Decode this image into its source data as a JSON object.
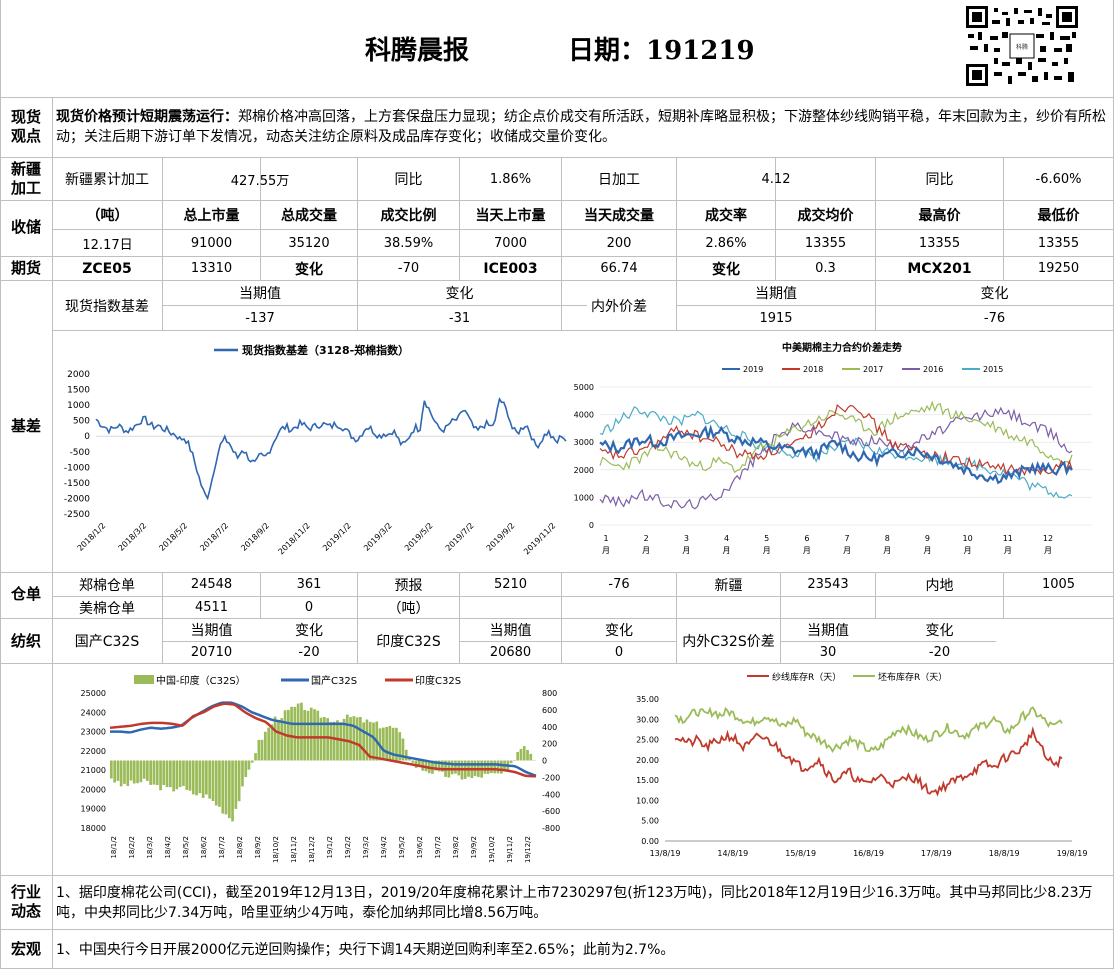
{
  "header": {
    "title": "科腾晨报",
    "date_label": "日期：191219"
  },
  "rows": {
    "spot_view": "现货观点",
    "xinjiang": "新疆加工",
    "storage": "收储",
    "futures": "期货",
    "basis": "基差",
    "warehouse": "仓单",
    "spinning": "纺织",
    "industry": "行业动态",
    "macro": "宏观"
  },
  "spot_view": {
    "bold": "现货价格预计短期震荡运行：",
    "text": "郑棉价格冲高回落，上方套保盘压力显现；纺企点价成交有所活跃，短期补库略显积极；下游整体纱线购销平稳，年末回款为主，纱价有所松动；关注后期下游订单下发情况，动态关注纺企原料及成品库存变化；收储成交量价变化。"
  },
  "xinjiang": {
    "cum_label": "新疆累计加工",
    "cum_value": "427.55万",
    "yoy_label": "同比",
    "yoy_value": "1.86%",
    "daily_label": "日加工",
    "daily_value": "4.12",
    "daily_yoy_label": "同比",
    "daily_yoy_value": "-6.60%"
  },
  "storage": {
    "headers": [
      "（吨）",
      "总上市量",
      "总成交量",
      "成交比例",
      "当天上市量",
      "当天成交量",
      "成交率",
      "成交均价",
      "最高价",
      "最低价"
    ],
    "values": [
      "12.17日",
      "91000",
      "35120",
      "38.59%",
      "7000",
      "200",
      "2.86%",
      "13355",
      "13355",
      "13355"
    ]
  },
  "futures": {
    "zce_label": "ZCE05",
    "zce_value": "13310",
    "change_label": "变化",
    "zce_change": "-70",
    "ice_label": "ICE003",
    "ice_value": "66.74",
    "change_label2": "变化",
    "ice_change": "0.3",
    "mcx_label": "MCX201",
    "mcx_value": "19250"
  },
  "basis_table": {
    "spot_index_label": "现货指数基差",
    "cur_label": "当期值",
    "chg_label": "变化",
    "spot_cur": "-137",
    "spot_chg": "-31",
    "inout_label": "内外价差",
    "cur_label2": "当期值",
    "chg_label2": "变化",
    "inout_cur": "1915",
    "inout_chg": "-76"
  },
  "warehouse": {
    "zce_label": "郑棉仓单",
    "zce_value": "24548",
    "zce_change": "361",
    "forecast_label": "预报",
    "forecast_value": "5210",
    "forecast_change": "-76",
    "xj_label": "新疆",
    "xj_value": "23543",
    "inland_label": "内地",
    "inland_value": "1005",
    "us_label": "美棉仓单",
    "us_value": "4511",
    "us_change": "0",
    "unit_label": "（吨）"
  },
  "spinning": {
    "cn_label": "国产C32S",
    "cur_label": "当期值",
    "chg_label": "变化",
    "cn_cur": "20710",
    "cn_chg": "-20",
    "in_label": "印度C32S",
    "cur_label2": "当期值",
    "chg_label2": "变化",
    "in_cur": "20680",
    "in_chg": "0",
    "diff_label": "内外C32S价差",
    "cur_label3": "当期值",
    "chg_label3": "变化",
    "diff_cur": "30",
    "diff_chg": "-20"
  },
  "industry_text": "1、据印度棉花公司(CCI)，截至2019年12月13日，2019/20年度棉花累计上市7230297包(折123万吨)，同比2018年12月19日少16.3万吨。其中马邦同比少8.23万吨，中央邦同比少7.34万吨，哈里亚纳少4万吨，泰伦加纳邦同比增8.56万吨。",
  "macro_text": "1、中国央行今日开展2000亿元逆回购操作；央行下调14天期逆回购利率至2.65%；此前为2.7%。",
  "colors": {
    "blue": "#2f67b1",
    "red": "#c0392b",
    "green": "#9bbb59",
    "purple": "#7b5ea7",
    "cyan": "#4bacc6",
    "orange": "#f79646"
  },
  "chart_data": [
    {
      "type": "line",
      "title": "",
      "series": [
        {
          "name": "现货指数基差（3128-郑棉指数）"
        }
      ],
      "x_ticks": [
        "2018/1/2",
        "2018/3/2",
        "2018/5/2",
        "2018/7/2",
        "2018/9/2",
        "2018/11/2",
        "2019/1/2",
        "2019/3/2",
        "2019/5/2",
        "2019/7/2",
        "2019/9/2",
        "2019/11/2"
      ],
      "y_ticks": [
        2000,
        1500,
        1000,
        500,
        0,
        -500,
        -1000,
        -1500,
        -2000,
        -2500
      ],
      "ylim": [
        -2500,
        2000
      ],
      "values": [
        550,
        400,
        300,
        200,
        250,
        350,
        250,
        150,
        250,
        350,
        500,
        550,
        400,
        300,
        350,
        250,
        200,
        100,
        50,
        -100,
        -50,
        -300,
        -700,
        -1200,
        -1700,
        -2000,
        -1500,
        -800,
        -300,
        -100,
        -200,
        -500,
        -700,
        -400,
        -600,
        -800,
        -900,
        -600,
        -700,
        -500,
        -200,
        100,
        250,
        300,
        200,
        300,
        400,
        350,
        250,
        300,
        350,
        400,
        350,
        300,
        400,
        350,
        250,
        100,
        -50,
        -100,
        100,
        300,
        250,
        100,
        0,
        100,
        50,
        200,
        -50,
        -300,
        -200,
        100,
        300,
        200,
        1200,
        900,
        600,
        300,
        200,
        250,
        450,
        500,
        600,
        900,
        600,
        300,
        150,
        300,
        400,
        300,
        450,
        1200,
        1000,
        700,
        200,
        100,
        250,
        400,
        100,
        -300,
        -250,
        0,
        150,
        -100,
        -200,
        50,
        -137
      ]
    },
    {
      "type": "line",
      "title": "中美期棉主力合约价差走势",
      "x_ticks": [
        "1月",
        "2月",
        "3月",
        "4月",
        "5月",
        "6月",
        "7月",
        "8月",
        "9月",
        "10月",
        "11月",
        "12月"
      ],
      "y_ticks": [
        5000,
        4000,
        3000,
        2000,
        1000,
        0
      ],
      "ylim": [
        0,
        5000
      ],
      "series": [
        {
          "name": "2019",
          "color": "#2f67b1",
          "values": [
            2900,
            2800,
            3100,
            3000,
            3200,
            3300,
            3400,
            3100,
            3000,
            2800,
            2700,
            2600,
            3000,
            2500,
            2400,
            2600,
            2700,
            2500,
            2200,
            1900,
            1700,
            1800,
            2100,
            2000,
            2100
          ]
        },
        {
          "name": "2018",
          "color": "#c0392b",
          "values": [
            2600,
            2500,
            2700,
            3000,
            3500,
            3200,
            3000,
            2600,
            2500,
            2700,
            2900,
            3500,
            4200,
            4400,
            3600,
            2900,
            2700,
            2500,
            2400,
            2200,
            2100,
            2000,
            1900,
            2100,
            2200
          ]
        },
        {
          "name": "2017",
          "color": "#9bbb59",
          "values": [
            2300,
            2100,
            2400,
            2800,
            2500,
            2100,
            2300,
            2000,
            2700,
            3100,
            3500,
            3800,
            4100,
            3700,
            3400,
            3900,
            4100,
            4300,
            4000,
            3800,
            3600,
            3200,
            3000,
            2500,
            2400
          ]
        },
        {
          "name": "2016",
          "color": "#7b5ea7",
          "values": [
            1000,
            800,
            1100,
            900,
            700,
            800,
            1100,
            1700,
            2500,
            3200,
            3600,
            3400,
            3200,
            3000,
            3100,
            2800,
            3000,
            3300,
            3700,
            3900,
            4100,
            4000,
            3600,
            3300,
            2600
          ]
        },
        {
          "name": "2015",
          "color": "#4bacc6",
          "values": [
            3300,
            3800,
            4200,
            3900,
            3700,
            4000,
            3600,
            3300,
            2900,
            2700,
            2600,
            2500,
            2800,
            3000,
            2700,
            2600,
            2500,
            2400,
            2300,
            2200,
            2000,
            1800,
            1400,
            1200,
            1050
          ]
        }
      ]
    },
    {
      "type": "bar",
      "series": [
        {
          "name": "中国-印度（C32S）",
          "type": "bar",
          "values": [
            -200,
            -300,
            -280,
            -260,
            -250,
            -300,
            -320,
            -350,
            -300,
            -380,
            -400,
            -420,
            -500,
            -600,
            -700,
            -400,
            -100,
            200,
            350,
            500,
            550,
            620,
            650,
            600,
            550,
            500,
            480,
            500,
            520,
            480,
            450,
            420,
            400,
            380,
            200,
            -50,
            -100,
            -130,
            -160,
            -180,
            -190,
            -200,
            -210,
            -180,
            -170,
            -160,
            -150,
            100,
            200,
            30
          ]
        },
        {
          "name": "国产C32S",
          "type": "line",
          "values": [
            23000,
            23000,
            22950,
            23100,
            23200,
            23150,
            23200,
            23300,
            23700,
            24000,
            24300,
            24500,
            24500,
            24300,
            24000,
            23800,
            23600,
            23500,
            23400,
            23400,
            23400,
            23400,
            23400,
            23400,
            23300,
            23000,
            22700,
            22000,
            21800,
            21700,
            21600,
            21500,
            21400,
            21350,
            21300,
            21300,
            21300,
            21300,
            21300,
            21250,
            21200,
            20900,
            20710
          ]
        },
        {
          "name": "印度C32S",
          "type": "line",
          "values": [
            23200,
            23250,
            23300,
            23400,
            23450,
            23450,
            23400,
            23300,
            23800,
            24000,
            24300,
            24450,
            24400,
            24000,
            23700,
            23500,
            23000,
            22800,
            22700,
            22700,
            22700,
            22700,
            22600,
            22500,
            22300,
            21700,
            21600,
            21500,
            21400,
            21300,
            21200,
            21100,
            21050,
            21050,
            21050,
            21050,
            21050,
            21050,
            21000,
            20900,
            20700,
            20680
          ]
        }
      ],
      "x_ticks": [
        "18/1/2",
        "18/2/2",
        "18/3/2",
        "18/4/2",
        "18/5/2",
        "18/6/2",
        "18/7/2",
        "18/8/2",
        "18/9/2",
        "18/10/2",
        "18/11/2",
        "18/12/2",
        "19/1/2",
        "19/2/2",
        "19/3/2",
        "19/4/2",
        "19/5/2",
        "19/6/2",
        "19/7/2",
        "19/8/2",
        "19/9/2",
        "19/10/2",
        "19/11/2",
        "19/12/2"
      ],
      "y_left_ticks": [
        25000,
        24000,
        23000,
        22000,
        21000,
        20000,
        19000,
        18000
      ],
      "y_right_ticks": [
        800,
        600,
        400,
        200,
        0,
        -200,
        -400,
        -600,
        -800
      ],
      "ylim_left": [
        18000,
        25000
      ],
      "ylim_right": [
        -800,
        800
      ]
    },
    {
      "type": "line",
      "series": [
        {
          "name": "纱线库存R（天）",
          "color": "#c0392b",
          "values": [
            26,
            25,
            24,
            25,
            23,
            24,
            25,
            26,
            25,
            23,
            24,
            26,
            25,
            24,
            22,
            21,
            19,
            18,
            19,
            20,
            17,
            15,
            16,
            17,
            15,
            14,
            15,
            16,
            15,
            14,
            15,
            16,
            15,
            13,
            12,
            13,
            14,
            15,
            16,
            17,
            18,
            19,
            18,
            20,
            21,
            22,
            23,
            27,
            24,
            20,
            19,
            20
          ]
        },
        {
          "name": "坯布库存R（天）",
          "color": "#9bbb59",
          "values": [
            31,
            30,
            31,
            32,
            31,
            32,
            31,
            32,
            31,
            30,
            29,
            30,
            31,
            30,
            28,
            29,
            30,
            27,
            26,
            25,
            24,
            23,
            24,
            25,
            24,
            23,
            22,
            23,
            25,
            27,
            28,
            27,
            26,
            25,
            26,
            27,
            28,
            27,
            26,
            27,
            28,
            29,
            30,
            28,
            27,
            29,
            31,
            32,
            31,
            29,
            28,
            30
          ]
        }
      ],
      "x_ticks": [
        "13/8/19",
        "14/8/19",
        "15/8/19",
        "16/8/19",
        "17/8/19",
        "18/8/19",
        "19/8/19"
      ],
      "y_ticks": [
        "35.00",
        "30.00",
        "25.00",
        "20.00",
        "15.00",
        "10.00",
        "5.00",
        "0.00"
      ],
      "ylim": [
        0,
        35
      ]
    }
  ]
}
